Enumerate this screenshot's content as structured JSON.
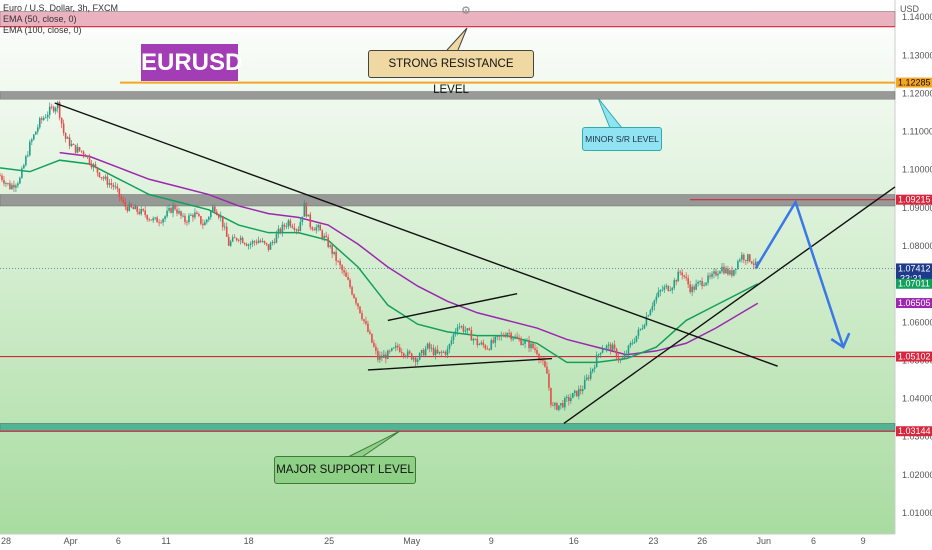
{
  "header": {
    "symbol_line": "Euro / U.S. Dollar, 3h, FXCM",
    "ema1": "EMA (50, close, 0)",
    "ema2": "EMA (100, close, 0)",
    "currency": "USD"
  },
  "badge": {
    "text": "EURUSD",
    "color": "#a23db6"
  },
  "annotations": {
    "strong_resistance": "STRONG RESISTANCE LEVEL",
    "minor_sr": "MINOR S/R LEVEL",
    "major_support": "MAJOR SUPPORT LEVEL"
  },
  "chart_data": {
    "type": "candlestick",
    "symbol": "EURUSD",
    "timeframe": "3h",
    "y_axis": {
      "range": [
        1.0045,
        1.1445
      ],
      "tick_labels": [
        "1.14000",
        "1.13000",
        "1.12000",
        "1.11000",
        "1.10000",
        "1.09000",
        "1.08000",
        "1.07000",
        "1.06000",
        "1.05000",
        "1.04000",
        "1.03000",
        "1.02000",
        "1.01000"
      ]
    },
    "x_axis": {
      "range": [
        0,
        900
      ],
      "tick_labels": [
        {
          "label": "28",
          "x": 6
        },
        {
          "label": "Apr",
          "x": 71
        },
        {
          "label": "6",
          "x": 119
        },
        {
          "label": "11",
          "x": 167
        },
        {
          "label": "18",
          "x": 250
        },
        {
          "label": "25",
          "x": 331
        },
        {
          "label": "May",
          "x": 414
        },
        {
          "label": "9",
          "x": 494
        },
        {
          "label": "16",
          "x": 577
        },
        {
          "label": "23",
          "x": 657
        },
        {
          "label": "26",
          "x": 706
        },
        {
          "label": "Jun",
          "x": 768
        },
        {
          "label": "6",
          "x": 818
        },
        {
          "label": "9",
          "x": 868
        }
      ]
    },
    "price_tags": [
      {
        "price": 1.12285,
        "label": "1.12285",
        "bg": "#f5a623",
        "fg": "#111"
      },
      {
        "price": 1.09215,
        "label": "1.09215",
        "bg": "#d7263d",
        "fg": "#fff"
      },
      {
        "price": 1.07412,
        "label": "1.07412",
        "bg": "#1e3a8a",
        "fg": "#fff",
        "sub": "33:31"
      },
      {
        "price": 1.07011,
        "label": "1.07011",
        "bg": "#12a05c",
        "fg": "#fff"
      },
      {
        "price": 1.06505,
        "label": "1.06505",
        "bg": "#9c27b0",
        "fg": "#fff"
      },
      {
        "price": 1.05102,
        "label": "1.05102",
        "bg": "#d7263d",
        "fg": "#fff"
      },
      {
        "price": 1.03144,
        "label": "1.03144",
        "bg": "#d7263d",
        "fg": "#fff"
      }
    ],
    "zones": [
      {
        "name": "strong-resistance-zone",
        "from": 1.1375,
        "to": 1.1415,
        "color": "#e8a5b5"
      },
      {
        "name": "minor-sr-zone",
        "from": 1.1185,
        "to": 1.1205,
        "color": "#8a8a8a"
      },
      {
        "name": "mid-resistance-zone",
        "from": 1.0905,
        "to": 1.0935,
        "color": "#8a8a8a"
      },
      {
        "name": "major-support-zone",
        "from": 1.0315,
        "to": 1.0335,
        "color": "#3fae8f"
      }
    ],
    "horizontal_lines": [
      {
        "name": "resistance-top-line",
        "price": 1.1375,
        "color": "#d7263d"
      },
      {
        "name": "orange-level-line",
        "price": 1.12285,
        "color": "#f5a623"
      },
      {
        "name": "red-level-line-109",
        "price": 1.09215,
        "color": "#d7263d"
      },
      {
        "name": "red-level-line-105",
        "price": 1.05102,
        "color": "#d7263d"
      },
      {
        "name": "red-level-line-103",
        "price": 1.03144,
        "color": "#d7263d"
      }
    ],
    "trendlines": [
      {
        "name": "descending-trendline",
        "x1": 55,
        "y1": 1.1175,
        "x2": 782,
        "y2": 1.0485
      },
      {
        "name": "ascending-trendline",
        "x1": 567,
        "y1": 1.0335,
        "x2": 900,
        "y2": 1.0955
      },
      {
        "name": "triangle-upper-line",
        "x1": 390,
        "y1": 1.0605,
        "x2": 520,
        "y2": 1.0675
      },
      {
        "name": "triangle-lower-line",
        "x1": 370,
        "y1": 1.0475,
        "x2": 555,
        "y2": 1.0505
      }
    ],
    "projection": {
      "points": [
        {
          "x": 760,
          "y": 1.0742
        },
        {
          "x": 800,
          "y": 1.0915
        },
        {
          "x": 848,
          "y": 1.0535
        }
      ],
      "color": "#3b78e7"
    },
    "close_series": [
      {
        "x": 0,
        "y": 1.0985
      },
      {
        "x": 10,
        "y": 1.0955
      },
      {
        "x": 20,
        "y": 1.0975
      },
      {
        "x": 30,
        "y": 1.1065
      },
      {
        "x": 40,
        "y": 1.1125
      },
      {
        "x": 50,
        "y": 1.1155
      },
      {
        "x": 58,
        "y": 1.1172
      },
      {
        "x": 65,
        "y": 1.1085
      },
      {
        "x": 75,
        "y": 1.1055
      },
      {
        "x": 85,
        "y": 1.1045
      },
      {
        "x": 95,
        "y": 1.1005
      },
      {
        "x": 105,
        "y": 1.0975
      },
      {
        "x": 115,
        "y": 1.0955
      },
      {
        "x": 125,
        "y": 1.0905
      },
      {
        "x": 135,
        "y": 1.0895
      },
      {
        "x": 145,
        "y": 1.0885
      },
      {
        "x": 155,
        "y": 1.0865
      },
      {
        "x": 165,
        "y": 1.0875
      },
      {
        "x": 175,
        "y": 1.0905
      },
      {
        "x": 185,
        "y": 1.0865
      },
      {
        "x": 195,
        "y": 1.0885
      },
      {
        "x": 205,
        "y": 1.0855
      },
      {
        "x": 215,
        "y": 1.0905
      },
      {
        "x": 222,
        "y": 1.0875
      },
      {
        "x": 230,
        "y": 1.0805
      },
      {
        "x": 240,
        "y": 1.0825
      },
      {
        "x": 250,
        "y": 1.0805
      },
      {
        "x": 260,
        "y": 1.0815
      },
      {
        "x": 270,
        "y": 1.0795
      },
      {
        "x": 280,
        "y": 1.0835
      },
      {
        "x": 290,
        "y": 1.0865
      },
      {
        "x": 300,
        "y": 1.0845
      },
      {
        "x": 306,
        "y": 1.0905
      },
      {
        "x": 312,
        "y": 1.0855
      },
      {
        "x": 320,
        "y": 1.0845
      },
      {
        "x": 330,
        "y": 1.0805
      },
      {
        "x": 340,
        "y": 1.0755
      },
      {
        "x": 350,
        "y": 1.0705
      },
      {
        "x": 360,
        "y": 1.0645
      },
      {
        "x": 370,
        "y": 1.0575
      },
      {
        "x": 380,
        "y": 1.0505
      },
      {
        "x": 390,
        "y": 1.0515
      },
      {
        "x": 400,
        "y": 1.0535
      },
      {
        "x": 410,
        "y": 1.0515
      },
      {
        "x": 420,
        "y": 1.0505
      },
      {
        "x": 430,
        "y": 1.0535
      },
      {
        "x": 440,
        "y": 1.0515
      },
      {
        "x": 450,
        "y": 1.0525
      },
      {
        "x": 460,
        "y": 1.0595
      },
      {
        "x": 470,
        "y": 1.0575
      },
      {
        "x": 480,
        "y": 1.0545
      },
      {
        "x": 490,
        "y": 1.0535
      },
      {
        "x": 500,
        "y": 1.0555
      },
      {
        "x": 510,
        "y": 1.0575
      },
      {
        "x": 520,
        "y": 1.0555
      },
      {
        "x": 530,
        "y": 1.0545
      },
      {
        "x": 540,
        "y": 1.0525
      },
      {
        "x": 550,
        "y": 1.0465
      },
      {
        "x": 555,
        "y": 1.0375
      },
      {
        "x": 565,
        "y": 1.0385
      },
      {
        "x": 575,
        "y": 1.0405
      },
      {
        "x": 585,
        "y": 1.0425
      },
      {
        "x": 595,
        "y": 1.0475
      },
      {
        "x": 605,
        "y": 1.0535
      },
      {
        "x": 615,
        "y": 1.0535
      },
      {
        "x": 625,
        "y": 1.0495
      },
      {
        "x": 635,
        "y": 1.0545
      },
      {
        "x": 645,
        "y": 1.0585
      },
      {
        "x": 655,
        "y": 1.0645
      },
      {
        "x": 665,
        "y": 1.0685
      },
      {
        "x": 675,
        "y": 1.0695
      },
      {
        "x": 685,
        "y": 1.0735
      },
      {
        "x": 695,
        "y": 1.0685
      },
      {
        "x": 705,
        "y": 1.0705
      },
      {
        "x": 715,
        "y": 1.0715
      },
      {
        "x": 725,
        "y": 1.0745
      },
      {
        "x": 735,
        "y": 1.0725
      },
      {
        "x": 745,
        "y": 1.0775
      },
      {
        "x": 755,
        "y": 1.0765
      },
      {
        "x": 762,
        "y": 1.0742
      }
    ],
    "ema50": [
      {
        "x": 0,
        "y": 1.1005
      },
      {
        "x": 30,
        "y": 1.0995
      },
      {
        "x": 60,
        "y": 1.1025
      },
      {
        "x": 90,
        "y": 1.1015
      },
      {
        "x": 120,
        "y": 1.0975
      },
      {
        "x": 150,
        "y": 1.0935
      },
      {
        "x": 180,
        "y": 1.0915
      },
      {
        "x": 210,
        "y": 1.0895
      },
      {
        "x": 240,
        "y": 1.0855
      },
      {
        "x": 270,
        "y": 1.0835
      },
      {
        "x": 300,
        "y": 1.0835
      },
      {
        "x": 330,
        "y": 1.0815
      },
      {
        "x": 360,
        "y": 1.0745
      },
      {
        "x": 390,
        "y": 1.0645
      },
      {
        "x": 420,
        "y": 1.0595
      },
      {
        "x": 450,
        "y": 1.0575
      },
      {
        "x": 480,
        "y": 1.0565
      },
      {
        "x": 510,
        "y": 1.0565
      },
      {
        "x": 540,
        "y": 1.0545
      },
      {
        "x": 570,
        "y": 1.0495
      },
      {
        "x": 600,
        "y": 1.0495
      },
      {
        "x": 630,
        "y": 1.0505
      },
      {
        "x": 660,
        "y": 1.0535
      },
      {
        "x": 690,
        "y": 1.0605
      },
      {
        "x": 720,
        "y": 1.0645
      },
      {
        "x": 762,
        "y": 1.0701
      }
    ],
    "ema100": [
      {
        "x": 60,
        "y": 1.1045
      },
      {
        "x": 90,
        "y": 1.1035
      },
      {
        "x": 120,
        "y": 1.1005
      },
      {
        "x": 150,
        "y": 1.0975
      },
      {
        "x": 180,
        "y": 1.0955
      },
      {
        "x": 210,
        "y": 1.0935
      },
      {
        "x": 240,
        "y": 1.0905
      },
      {
        "x": 270,
        "y": 1.0885
      },
      {
        "x": 300,
        "y": 1.0875
      },
      {
        "x": 330,
        "y": 1.0855
      },
      {
        "x": 360,
        "y": 1.0805
      },
      {
        "x": 390,
        "y": 1.0745
      },
      {
        "x": 420,
        "y": 1.0695
      },
      {
        "x": 450,
        "y": 1.0655
      },
      {
        "x": 480,
        "y": 1.0625
      },
      {
        "x": 510,
        "y": 1.0605
      },
      {
        "x": 540,
        "y": 1.0585
      },
      {
        "x": 570,
        "y": 1.0555
      },
      {
        "x": 600,
        "y": 1.0535
      },
      {
        "x": 630,
        "y": 1.0515
      },
      {
        "x": 660,
        "y": 1.0525
      },
      {
        "x": 690,
        "y": 1.0545
      },
      {
        "x": 720,
        "y": 1.0585
      },
      {
        "x": 762,
        "y": 1.065
      }
    ],
    "colors": {
      "up": "#1f9e89",
      "down": "#e54b4b",
      "ema50": "#12a05c",
      "ema100": "#9c27b0",
      "bg_top": "#ffffff",
      "bg_bottom": "#a8dca0"
    }
  }
}
